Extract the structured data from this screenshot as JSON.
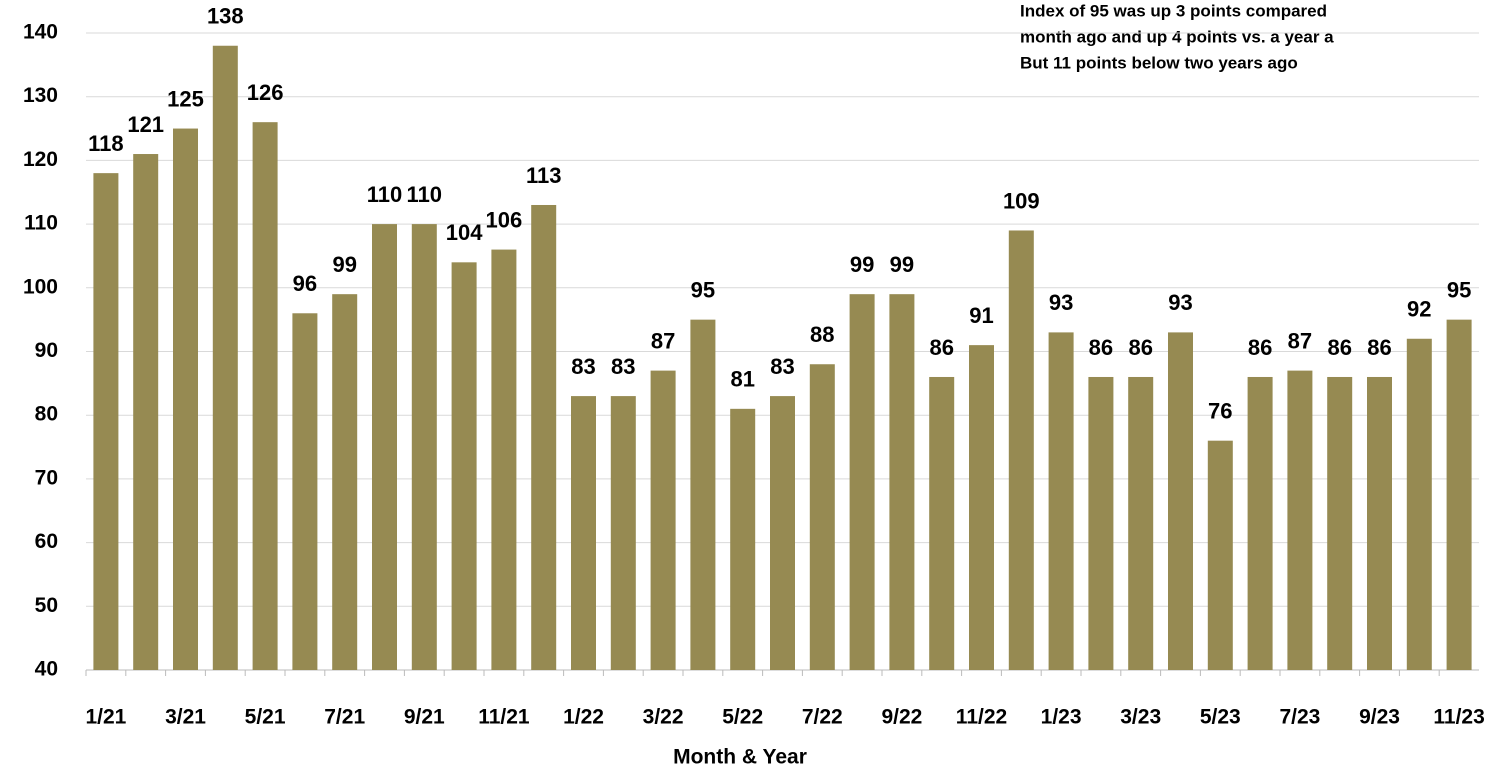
{
  "chart_data": {
    "type": "bar",
    "annotation": [
      "Index of 95 was up 3 points compared",
      "month ago and up 4 points vs. a year a",
      "But 11 points below two years ago"
    ],
    "x_label": "Month & Year",
    "categories": [
      "1/21",
      null,
      "3/21",
      null,
      "5/21",
      null,
      "7/21",
      null,
      "9/21",
      null,
      "11/21",
      null,
      "1/22",
      null,
      "3/22",
      null,
      "5/22",
      null,
      "7/22",
      null,
      "9/22",
      null,
      "11/22",
      null,
      "1/23",
      null,
      "3/23",
      null,
      "5/23",
      null,
      "7/23",
      null,
      "9/23",
      null,
      "11/23"
    ],
    "values": [
      118,
      121,
      125,
      138,
      126,
      96,
      99,
      110,
      110,
      104,
      106,
      113,
      83,
      83,
      87,
      95,
      81,
      83,
      88,
      99,
      99,
      86,
      91,
      109,
      93,
      86,
      86,
      93,
      76,
      86,
      87,
      86,
      86,
      92,
      95
    ],
    "color": "#968a52",
    "ylim": [
      40,
      140
    ],
    "yticks": [
      40,
      50,
      60,
      70,
      80,
      90,
      100,
      110,
      120,
      130,
      140
    ],
    "grid": true
  }
}
